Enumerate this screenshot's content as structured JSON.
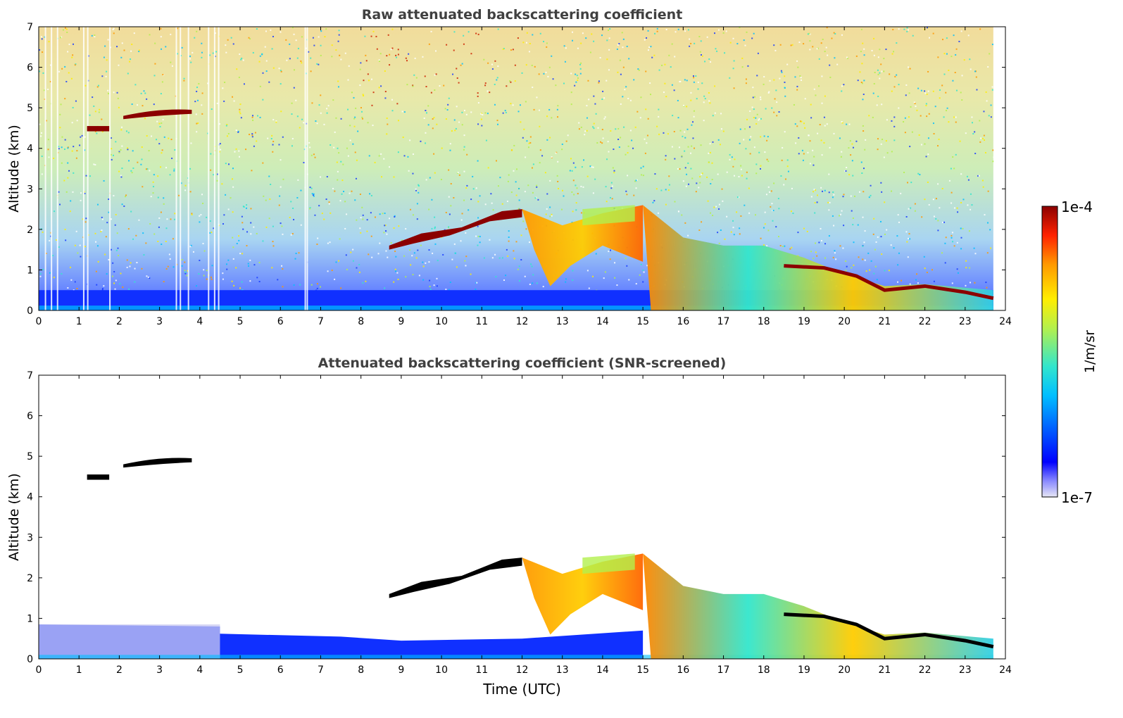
{
  "chart_data": [
    {
      "type": "heatmap",
      "title": "Raw attenuated backscattering coefficient",
      "xlabel": "",
      "ylabel": "Altitude (km)",
      "xlim": [
        0,
        24
      ],
      "ylim": [
        0,
        7
      ],
      "xticks": [
        "0",
        "1",
        "2",
        "3",
        "4",
        "5",
        "6",
        "7",
        "8",
        "9",
        "10",
        "11",
        "12",
        "13",
        "14",
        "15",
        "16",
        "17",
        "18",
        "19",
        "20",
        "21",
        "22",
        "23",
        "24"
      ],
      "yticks": [
        "0",
        "1",
        "2",
        "3",
        "4",
        "5",
        "6",
        "7"
      ],
      "data_end_time": 23.7,
      "cloud_layers": [
        {
          "name": "high-cloud-a",
          "t": [
            1.2,
            1.75
          ],
          "alt": [
            4.42,
            4.55
          ]
        },
        {
          "name": "high-cloud-b",
          "t": [
            2.1,
            3.8
          ],
          "alt": [
            4.8,
            4.95
          ]
        },
        {
          "name": "mid-cloud",
          "t": [
            8.7,
            12.0
          ],
          "alt": [
            1.6,
            2.5
          ]
        },
        {
          "name": "descending-layer",
          "t": [
            12.0,
            23.7
          ],
          "alt": [
            2.5,
            0.3
          ]
        }
      ],
      "surface_layer": {
        "alt": [
          0,
          0.5
        ]
      }
    },
    {
      "type": "heatmap",
      "title": "Attenuated backscattering coefficient (SNR-screened)",
      "xlabel": "Time (UTC)",
      "ylabel": "Altitude (km)",
      "xlim": [
        0,
        24
      ],
      "ylim": [
        0,
        7
      ],
      "xticks": [
        "0",
        "1",
        "2",
        "3",
        "4",
        "5",
        "6",
        "7",
        "8",
        "9",
        "10",
        "11",
        "12",
        "13",
        "14",
        "15",
        "16",
        "17",
        "18",
        "19",
        "20",
        "21",
        "22",
        "23",
        "24"
      ],
      "yticks": [
        "0",
        "1",
        "2",
        "3",
        "4",
        "5",
        "6",
        "7"
      ],
      "data_end_time": 23.7,
      "cloud_layers": [
        {
          "name": "high-cloud-a",
          "t": [
            1.2,
            1.75
          ],
          "alt": [
            4.42,
            4.55
          ]
        },
        {
          "name": "high-cloud-b",
          "t": [
            2.1,
            3.8
          ],
          "alt": [
            4.75,
            4.95
          ]
        },
        {
          "name": "mid-cloud",
          "t": [
            8.7,
            12.0
          ],
          "alt": [
            1.6,
            2.5
          ]
        },
        {
          "name": "descending-layer",
          "t": [
            12.0,
            23.7
          ],
          "alt": [
            2.5,
            0.3
          ]
        }
      ],
      "surface_layer": {
        "alt": [
          0,
          0.85
        ]
      }
    }
  ],
  "colorbar": {
    "label": "1/m/sr",
    "max_label": "1e-4",
    "min_label": "1e-7",
    "scale": "log",
    "range": [
      1e-07,
      0.0001
    ],
    "colormap": [
      "#e6e6f5",
      "#0000ff",
      "#00bfff",
      "#33e6cc",
      "#b3f04d",
      "#ffee00",
      "#ff9900",
      "#ff2200",
      "#8b0000"
    ]
  }
}
